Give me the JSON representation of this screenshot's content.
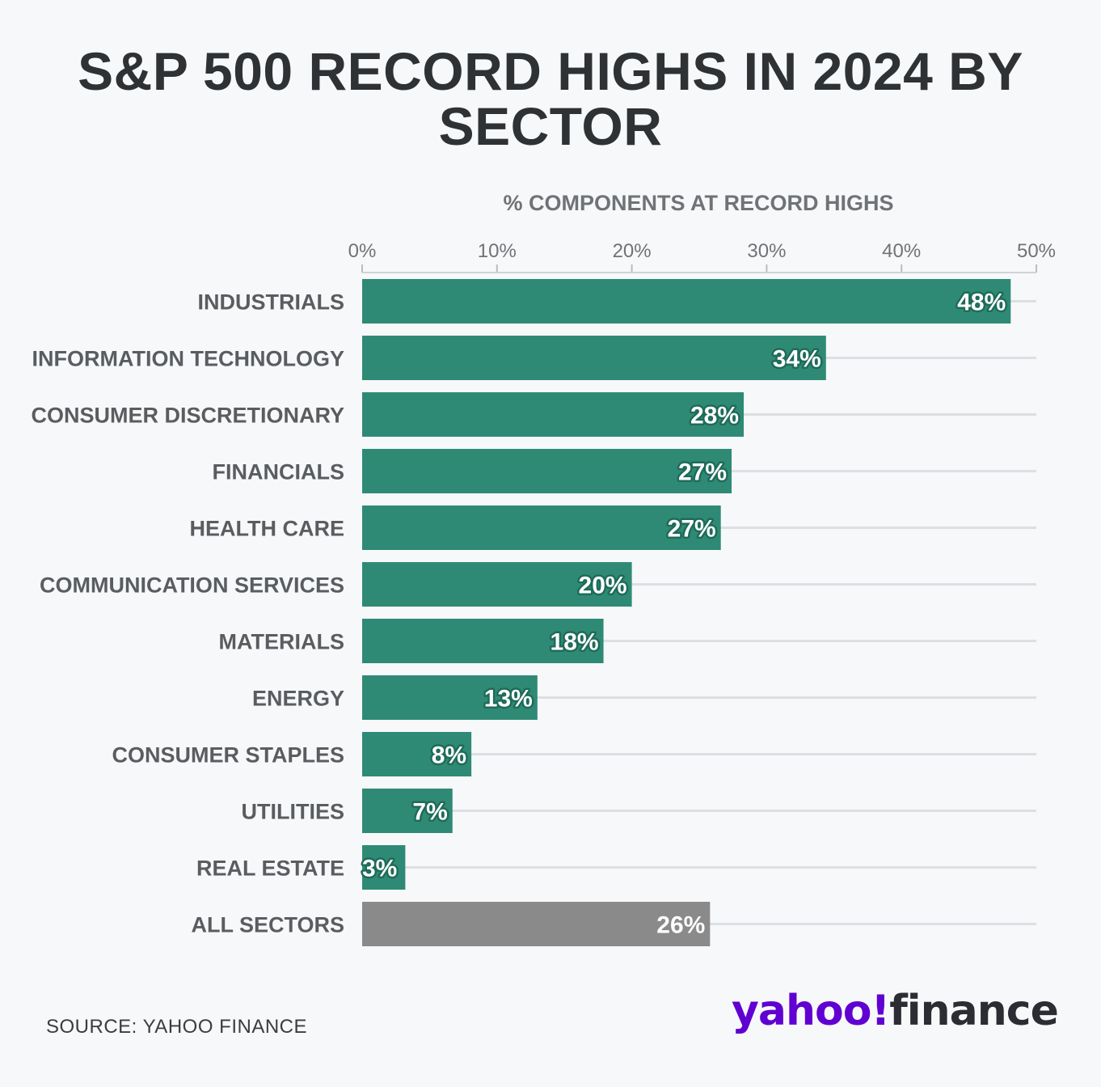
{
  "chart_data": {
    "type": "bar",
    "orientation": "horizontal",
    "title": "S&P 500 RECORD HIGHS IN 2024 BY SECTOR",
    "xlabel": "% COMPONENTS AT RECORD HIGHS",
    "xlim": [
      0,
      50
    ],
    "ticks": [
      0,
      10,
      20,
      30,
      40,
      50
    ],
    "tick_labels": [
      "0%",
      "10%",
      "20%",
      "30%",
      "40%",
      "50%"
    ],
    "grid": true,
    "categories": [
      "INDUSTRIALS",
      "INFORMATION TECHNOLOGY",
      "CONSUMER DISCRETIONARY",
      "FINANCIALS",
      "HEALTH CARE",
      "COMMUNICATION SERVICES",
      "MATERIALS",
      "ENERGY",
      "CONSUMER STAPLES",
      "UTILITIES",
      "REAL ESTATE",
      "ALL SECTORS"
    ],
    "values": [
      48.1,
      34.4,
      28.3,
      27.4,
      26.6,
      20.0,
      17.9,
      13.0,
      8.1,
      6.7,
      3.2,
      25.8
    ],
    "value_labels": [
      "48%",
      "34%",
      "28%",
      "27%",
      "27%",
      "20%",
      "18%",
      "13%",
      "8%",
      "7%",
      "3%",
      "26%"
    ],
    "colors": {
      "sector_bar": "#2f8a75",
      "total_bar": "#8a8a8a",
      "label_outline": "#1e6b59",
      "grid": "#dcdfe3",
      "category_text": "#5a5d60",
      "tick_text": "#707376"
    }
  },
  "footer": {
    "source": "SOURCE: YAHOO FINANCE",
    "logo_word": "yahoo",
    "logo_mark": "!",
    "logo_suffix": "finance"
  }
}
